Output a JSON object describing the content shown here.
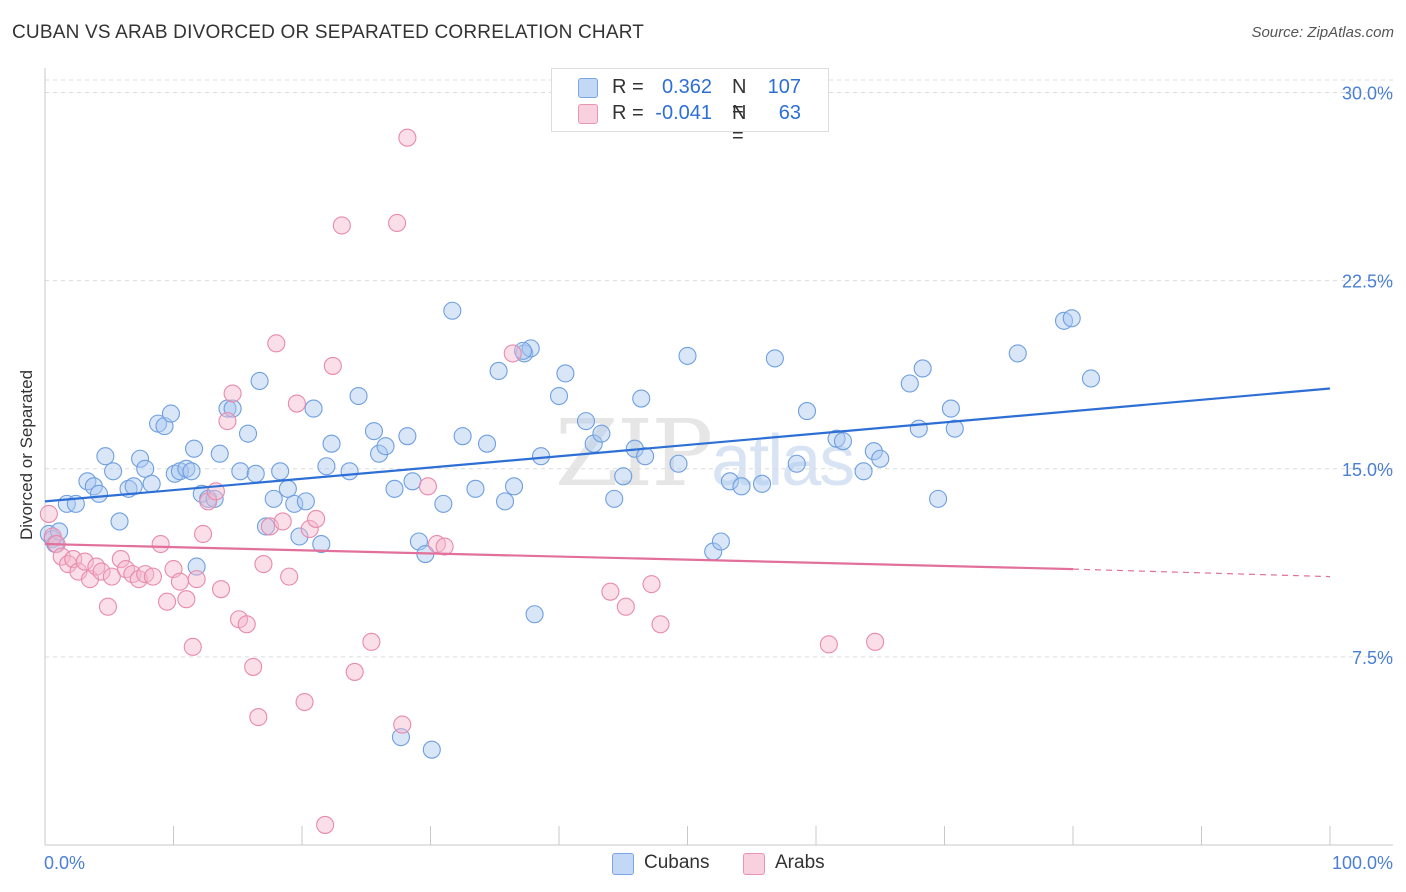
{
  "header": {
    "title": "CUBAN VS ARAB DIVORCED OR SEPARATED CORRELATION CHART",
    "source": "Source: ZipAtlas.com"
  },
  "watermark": {
    "zip": "ZIP",
    "atlas": "atlas"
  },
  "legend": {
    "rows": [
      {
        "r_label": "R =",
        "r_value": "0.362",
        "n_label": "N =",
        "n_value": "107",
        "color": "#a8c8f0"
      },
      {
        "r_label": "R =",
        "r_value": "-0.041",
        "n_label": "N =",
        "n_value": "63",
        "color": "#f5b8cc"
      }
    ]
  },
  "bottom_legend": {
    "items": [
      "Cubans",
      "Arabs"
    ]
  },
  "chart_data": {
    "type": "scatter",
    "title": "CUBAN VS ARAB DIVORCED OR SEPARATED CORRELATION CHART",
    "xlabel": "",
    "ylabel": "Divorced or Separated",
    "xlim": [
      0,
      100
    ],
    "ylim": [
      0,
      30.5
    ],
    "x_tick_labels": [
      "0.0%",
      "100.0%"
    ],
    "y_ticks": [
      7.5,
      15.0,
      22.5,
      30.0
    ],
    "y_tick_labels": [
      "7.5%",
      "15.0%",
      "22.5%",
      "30.0%"
    ],
    "grid": "horizontal-dashed",
    "legend_position": "top-center",
    "colors": {
      "Cubans": "#2e6fd6",
      "Arabs": "#e2709a",
      "Cubans_fill": "#a8c8f0",
      "Arabs_fill": "#f5b8cc"
    },
    "series": [
      {
        "name": "Cubans",
        "trend": {
          "x": [
            0,
            100
          ],
          "y": [
            13.7,
            18.2
          ],
          "dashed_from": null
        },
        "points": [
          [
            0.3,
            12.4
          ],
          [
            0.6,
            12.2
          ],
          [
            0.8,
            12.0
          ],
          [
            1.1,
            12.5
          ],
          [
            1.7,
            13.6
          ],
          [
            2.4,
            13.6
          ],
          [
            3.3,
            14.5
          ],
          [
            3.8,
            14.3
          ],
          [
            4.2,
            14.0
          ],
          [
            4.7,
            15.5
          ],
          [
            5.3,
            14.9
          ],
          [
            5.8,
            12.9
          ],
          [
            6.5,
            14.2
          ],
          [
            6.9,
            14.3
          ],
          [
            7.4,
            15.4
          ],
          [
            7.8,
            15.0
          ],
          [
            8.3,
            14.4
          ],
          [
            8.8,
            16.8
          ],
          [
            9.3,
            16.7
          ],
          [
            9.8,
            17.2
          ],
          [
            10.1,
            14.8
          ],
          [
            10.5,
            14.9
          ],
          [
            11.0,
            15.0
          ],
          [
            11.4,
            14.9
          ],
          [
            11.8,
            11.1
          ],
          [
            12.2,
            14.0
          ],
          [
            12.7,
            13.8
          ],
          [
            13.2,
            13.8
          ],
          [
            13.6,
            15.6
          ],
          [
            14.2,
            17.4
          ],
          [
            14.6,
            17.4
          ],
          [
            15.2,
            14.9
          ],
          [
            15.8,
            16.4
          ],
          [
            16.4,
            14.8
          ],
          [
            16.7,
            18.5
          ],
          [
            17.2,
            12.7
          ],
          [
            17.8,
            13.8
          ],
          [
            18.3,
            14.9
          ],
          [
            18.9,
            14.2
          ],
          [
            19.4,
            13.6
          ],
          [
            19.8,
            12.3
          ],
          [
            20.3,
            13.7
          ],
          [
            20.9,
            17.4
          ],
          [
            21.5,
            12.0
          ],
          [
            21.9,
            15.1
          ],
          [
            22.3,
            16.0
          ],
          [
            23.7,
            14.9
          ],
          [
            24.4,
            17.9
          ],
          [
            25.6,
            16.5
          ],
          [
            26.0,
            15.6
          ],
          [
            26.5,
            15.9
          ],
          [
            27.2,
            14.2
          ],
          [
            27.7,
            4.3
          ],
          [
            28.2,
            16.3
          ],
          [
            28.6,
            14.5
          ],
          [
            29.1,
            12.1
          ],
          [
            29.6,
            11.6
          ],
          [
            30.1,
            3.8
          ],
          [
            31.0,
            13.6
          ],
          [
            31.7,
            21.3
          ],
          [
            32.5,
            16.3
          ],
          [
            33.5,
            14.2
          ],
          [
            34.4,
            16.0
          ],
          [
            35.3,
            18.9
          ],
          [
            35.8,
            13.7
          ],
          [
            36.5,
            14.3
          ],
          [
            37.3,
            19.6
          ],
          [
            37.8,
            19.8
          ],
          [
            37.2,
            19.7
          ],
          [
            38.1,
            9.2
          ],
          [
            38.6,
            15.5
          ],
          [
            40.0,
            17.9
          ],
          [
            40.5,
            18.8
          ],
          [
            42.1,
            16.9
          ],
          [
            42.7,
            16.0
          ],
          [
            43.3,
            16.4
          ],
          [
            44.3,
            13.8
          ],
          [
            45.0,
            14.7
          ],
          [
            45.9,
            15.8
          ],
          [
            46.7,
            15.5
          ],
          [
            46.4,
            17.8
          ],
          [
            49.3,
            15.2
          ],
          [
            50.0,
            19.5
          ],
          [
            52.0,
            11.7
          ],
          [
            52.6,
            12.1
          ],
          [
            53.3,
            14.5
          ],
          [
            54.2,
            14.3
          ],
          [
            55.8,
            14.4
          ],
          [
            56.8,
            19.4
          ],
          [
            58.5,
            15.2
          ],
          [
            59.3,
            17.3
          ],
          [
            61.6,
            16.2
          ],
          [
            62.1,
            16.1
          ],
          [
            63.7,
            14.9
          ],
          [
            64.5,
            15.7
          ],
          [
            65.0,
            15.4
          ],
          [
            67.3,
            18.4
          ],
          [
            68.3,
            19.0
          ],
          [
            68.0,
            16.6
          ],
          [
            69.5,
            13.8
          ],
          [
            70.5,
            17.4
          ],
          [
            70.8,
            16.6
          ],
          [
            75.7,
            19.6
          ],
          [
            79.3,
            20.9
          ],
          [
            79.9,
            21.0
          ],
          [
            81.4,
            18.6
          ],
          [
            11.6,
            15.8
          ]
        ]
      },
      {
        "name": "Arabs",
        "trend": {
          "x": [
            0,
            80
          ],
          "y": [
            12.0,
            11.0
          ],
          "dashed_from": 80,
          "dashed_to": [
            100,
            10.7
          ]
        },
        "points": [
          [
            0.3,
            13.2
          ],
          [
            0.6,
            12.3
          ],
          [
            0.9,
            12.0
          ],
          [
            1.3,
            11.5
          ],
          [
            1.8,
            11.2
          ],
          [
            2.2,
            11.4
          ],
          [
            2.6,
            10.9
          ],
          [
            3.1,
            11.3
          ],
          [
            3.5,
            10.6
          ],
          [
            4.0,
            11.1
          ],
          [
            4.4,
            10.9
          ],
          [
            4.9,
            9.5
          ],
          [
            5.2,
            10.7
          ],
          [
            5.9,
            11.4
          ],
          [
            6.3,
            11.0
          ],
          [
            6.8,
            10.8
          ],
          [
            7.3,
            10.6
          ],
          [
            7.8,
            10.8
          ],
          [
            8.4,
            10.7
          ],
          [
            9.0,
            12.0
          ],
          [
            9.5,
            9.7
          ],
          [
            10.0,
            11.0
          ],
          [
            10.5,
            10.5
          ],
          [
            11.0,
            9.8
          ],
          [
            11.5,
            7.9
          ],
          [
            11.8,
            10.6
          ],
          [
            12.3,
            12.4
          ],
          [
            12.7,
            13.7
          ],
          [
            13.3,
            14.1
          ],
          [
            13.7,
            10.2
          ],
          [
            14.2,
            16.9
          ],
          [
            14.6,
            18.0
          ],
          [
            15.1,
            9.0
          ],
          [
            15.7,
            8.8
          ],
          [
            16.2,
            7.1
          ],
          [
            16.6,
            5.1
          ],
          [
            17.0,
            11.2
          ],
          [
            17.5,
            12.7
          ],
          [
            18.0,
            20.0
          ],
          [
            18.5,
            12.9
          ],
          [
            19.0,
            10.7
          ],
          [
            19.6,
            17.6
          ],
          [
            20.2,
            5.7
          ],
          [
            20.6,
            12.6
          ],
          [
            21.1,
            13.0
          ],
          [
            21.8,
            0.8
          ],
          [
            22.4,
            19.1
          ],
          [
            23.1,
            24.7
          ],
          [
            24.1,
            6.9
          ],
          [
            25.4,
            8.1
          ],
          [
            27.4,
            24.8
          ],
          [
            27.8,
            4.8
          ],
          [
            29.8,
            14.3
          ],
          [
            30.5,
            12.0
          ],
          [
            31.1,
            11.9
          ],
          [
            36.4,
            19.6
          ],
          [
            28.2,
            28.2
          ],
          [
            44.0,
            10.1
          ],
          [
            45.2,
            9.5
          ],
          [
            47.2,
            10.4
          ],
          [
            47.9,
            8.8
          ],
          [
            61.0,
            8.0
          ],
          [
            64.6,
            8.1
          ]
        ]
      }
    ]
  }
}
